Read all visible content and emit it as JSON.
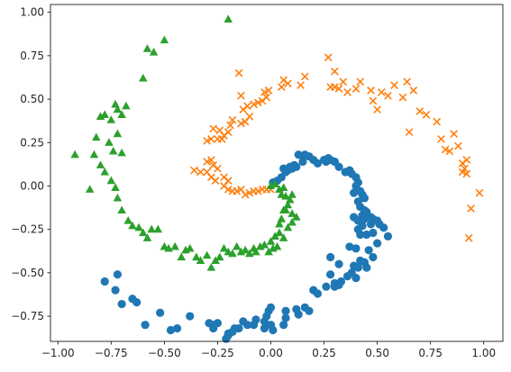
{
  "chart_data": {
    "type": "scatter",
    "title": "",
    "xlabel": "",
    "ylabel": "",
    "xlim": [
      -1.035,
      1.09
    ],
    "ylim": [
      -0.895,
      1.045
    ],
    "xticks": [
      {
        "value": -1.0,
        "label": "−1.00"
      },
      {
        "value": -0.75,
        "label": "−0.75"
      },
      {
        "value": -0.5,
        "label": "−0.50"
      },
      {
        "value": -0.25,
        "label": "−0.25"
      },
      {
        "value": 0.0,
        "label": "0.00"
      },
      {
        "value": 0.25,
        "label": "0.25"
      },
      {
        "value": 0.5,
        "label": "0.50"
      },
      {
        "value": 0.75,
        "label": "0.75"
      },
      {
        "value": 1.0,
        "label": "1.00"
      }
    ],
    "yticks": [
      {
        "value": -0.75,
        "label": "−0.75"
      },
      {
        "value": -0.5,
        "label": "−0.50"
      },
      {
        "value": -0.25,
        "label": "−0.25"
      },
      {
        "value": 0.0,
        "label": "0.00"
      },
      {
        "value": 0.25,
        "label": "0.25"
      },
      {
        "value": 0.5,
        "label": "0.50"
      },
      {
        "value": 0.75,
        "label": "0.75"
      },
      {
        "value": 1.0,
        "label": "1.00"
      }
    ],
    "grid": false,
    "legend": "none",
    "series": [
      {
        "marker": "circle",
        "color": "#1f77b4",
        "points": [
          [
            0.01,
            0.02
          ],
          [
            0.03,
            0.03
          ],
          [
            0.05,
            0.05
          ],
          [
            0.07,
            0.08
          ],
          [
            0.1,
            0.1
          ],
          [
            0.12,
            0.11
          ],
          [
            0.15,
            0.14
          ],
          [
            0.15,
            0.17
          ],
          [
            0.13,
            0.18
          ],
          [
            0.16,
            0.18
          ],
          [
            0.18,
            0.17
          ],
          [
            0.2,
            0.15
          ],
          [
            0.08,
            0.09
          ],
          [
            0.11,
            0.12
          ],
          [
            0.06,
            0.1
          ],
          [
            0.09,
            0.11
          ],
          [
            0.22,
            0.13
          ],
          [
            0.25,
            0.15
          ],
          [
            0.26,
            0.14
          ],
          [
            0.28,
            0.15
          ],
          [
            0.3,
            0.14
          ],
          [
            0.27,
            0.16
          ],
          [
            0.32,
            0.11
          ],
          [
            0.35,
            0.08
          ],
          [
            0.37,
            0.09
          ],
          [
            0.38,
            0.07
          ],
          [
            0.4,
            0.05
          ],
          [
            0.41,
            0.02
          ],
          [
            0.4,
            0.0
          ],
          [
            0.42,
            -0.03
          ],
          [
            0.43,
            -0.05
          ],
          [
            0.44,
            -0.07
          ],
          [
            0.39,
            -0.04
          ],
          [
            0.41,
            -0.09
          ],
          [
            0.42,
            -0.12
          ],
          [
            0.44,
            -0.14
          ],
          [
            0.45,
            -0.15
          ],
          [
            0.43,
            -0.17
          ],
          [
            0.39,
            -0.18
          ],
          [
            0.41,
            -0.2
          ],
          [
            0.44,
            -0.19
          ],
          [
            0.47,
            -0.18
          ],
          [
            0.48,
            -0.19
          ],
          [
            0.5,
            -0.2
          ],
          [
            0.43,
            -0.23
          ],
          [
            0.47,
            -0.22
          ],
          [
            0.51,
            -0.22
          ],
          [
            0.53,
            -0.24
          ],
          [
            0.41,
            -0.25
          ],
          [
            0.42,
            -0.28
          ],
          [
            0.45,
            -0.28
          ],
          [
            0.48,
            -0.27
          ],
          [
            0.55,
            -0.29
          ],
          [
            0.5,
            -0.33
          ],
          [
            0.4,
            -0.36
          ],
          [
            0.37,
            -0.35
          ],
          [
            0.46,
            -0.37
          ],
          [
            0.28,
            -0.41
          ],
          [
            0.48,
            -0.41
          ],
          [
            0.42,
            -0.43
          ],
          [
            0.44,
            -0.44
          ],
          [
            0.39,
            -0.46
          ],
          [
            0.32,
            -0.45
          ],
          [
            0.41,
            -0.47
          ],
          [
            0.45,
            -0.47
          ],
          [
            0.38,
            -0.5
          ],
          [
            0.28,
            -0.51
          ],
          [
            0.36,
            -0.52
          ],
          [
            0.4,
            -0.53
          ],
          [
            0.33,
            -0.55
          ],
          [
            0.3,
            -0.56
          ],
          [
            0.26,
            -0.58
          ],
          [
            0.3,
            -0.58
          ],
          [
            0.32,
            -0.57
          ],
          [
            0.2,
            -0.6
          ],
          [
            0.22,
            -0.62
          ],
          [
            0.16,
            -0.7
          ],
          [
            0.18,
            -0.72
          ],
          [
            0.12,
            -0.71
          ],
          [
            0.13,
            -0.74
          ],
          [
            0.07,
            -0.72
          ],
          [
            0.07,
            -0.76
          ],
          [
            0.06,
            -0.8
          ],
          [
            0.0,
            -0.7
          ],
          [
            -0.01,
            -0.72
          ],
          [
            -0.02,
            -0.75
          ],
          [
            -0.03,
            -0.78
          ],
          [
            0.0,
            -0.8
          ],
          [
            0.01,
            -0.83
          ],
          [
            -0.03,
            -0.82
          ],
          [
            -0.07,
            -0.77
          ],
          [
            -0.08,
            -0.8
          ],
          [
            -0.11,
            -0.8
          ],
          [
            -0.13,
            -0.78
          ],
          [
            -0.15,
            -0.82
          ],
          [
            -0.17,
            -0.82
          ],
          [
            -0.18,
            -0.84
          ],
          [
            -0.2,
            -0.85
          ],
          [
            -0.21,
            -0.88
          ],
          [
            -0.2,
            -0.86
          ],
          [
            -0.25,
            -0.79
          ],
          [
            -0.27,
            -0.8
          ],
          [
            -0.29,
            -0.79
          ],
          [
            -0.27,
            -0.82
          ],
          [
            -0.38,
            -0.75
          ],
          [
            -0.44,
            -0.82
          ],
          [
            -0.47,
            -0.83
          ],
          [
            -0.52,
            -0.73
          ],
          [
            -0.59,
            -0.8
          ],
          [
            -0.63,
            -0.67
          ],
          [
            -0.65,
            -0.65
          ],
          [
            -0.7,
            -0.68
          ],
          [
            -0.73,
            -0.6
          ],
          [
            -0.72,
            -0.51
          ],
          [
            -0.78,
            -0.55
          ]
        ]
      },
      {
        "marker": "x",
        "color": "#ff7f0e",
        "points": [
          [
            0.0,
            -0.02
          ],
          [
            -0.02,
            -0.02
          ],
          [
            -0.04,
            -0.02
          ],
          [
            -0.06,
            -0.03
          ],
          [
            -0.08,
            -0.03
          ],
          [
            -0.1,
            -0.04
          ],
          [
            -0.12,
            -0.05
          ],
          [
            -0.14,
            -0.02
          ],
          [
            -0.16,
            -0.03
          ],
          [
            -0.18,
            -0.03
          ],
          [
            -0.2,
            -0.02
          ],
          [
            -0.22,
            0.0
          ],
          [
            -0.2,
            0.03
          ],
          [
            -0.22,
            0.05
          ],
          [
            -0.26,
            0.03
          ],
          [
            -0.28,
            0.05
          ],
          [
            -0.3,
            0.08
          ],
          [
            -0.27,
            0.12
          ],
          [
            -0.3,
            0.14
          ],
          [
            -0.28,
            0.15
          ],
          [
            -0.25,
            0.1
          ],
          [
            -0.33,
            0.08
          ],
          [
            -0.36,
            0.09
          ],
          [
            -0.3,
            0.26
          ],
          [
            -0.28,
            0.27
          ],
          [
            -0.25,
            0.27
          ],
          [
            -0.23,
            0.27
          ],
          [
            -0.27,
            0.33
          ],
          [
            -0.24,
            0.32
          ],
          [
            -0.22,
            0.29
          ],
          [
            -0.2,
            0.31
          ],
          [
            -0.19,
            0.35
          ],
          [
            -0.18,
            0.38
          ],
          [
            -0.14,
            0.36
          ],
          [
            -0.12,
            0.37
          ],
          [
            -0.1,
            0.4
          ],
          [
            -0.13,
            0.44
          ],
          [
            -0.11,
            0.46
          ],
          [
            -0.08,
            0.47
          ],
          [
            -0.06,
            0.48
          ],
          [
            -0.04,
            0.49
          ],
          [
            -0.02,
            0.51
          ],
          [
            -0.01,
            0.55
          ],
          [
            -0.03,
            0.54
          ],
          [
            -0.14,
            0.52
          ],
          [
            -0.15,
            0.65
          ],
          [
            0.05,
            0.57
          ],
          [
            0.06,
            0.61
          ],
          [
            0.08,
            0.59
          ],
          [
            0.14,
            0.58
          ],
          [
            0.16,
            0.63
          ],
          [
            0.27,
            0.74
          ],
          [
            0.3,
            0.66
          ],
          [
            0.34,
            0.6
          ],
          [
            0.3,
            0.57
          ],
          [
            0.32,
            0.56
          ],
          [
            0.36,
            0.54
          ],
          [
            0.4,
            0.56
          ],
          [
            0.42,
            0.6
          ],
          [
            0.47,
            0.55
          ],
          [
            0.48,
            0.49
          ],
          [
            0.5,
            0.44
          ],
          [
            0.52,
            0.54
          ],
          [
            0.55,
            0.52
          ],
          [
            0.58,
            0.58
          ],
          [
            0.62,
            0.51
          ],
          [
            0.64,
            0.6
          ],
          [
            0.67,
            0.55
          ],
          [
            0.7,
            0.43
          ],
          [
            0.73,
            0.41
          ],
          [
            0.65,
            0.31
          ],
          [
            0.78,
            0.37
          ],
          [
            0.8,
            0.27
          ],
          [
            0.82,
            0.21
          ],
          [
            0.84,
            0.2
          ],
          [
            0.86,
            0.3
          ],
          [
            0.88,
            0.23
          ],
          [
            0.9,
            0.13
          ],
          [
            0.92,
            0.15
          ],
          [
            0.9,
            0.08
          ],
          [
            0.92,
            0.07
          ],
          [
            0.91,
            0.1
          ],
          [
            0.98,
            -0.04
          ],
          [
            0.94,
            -0.13
          ],
          [
            0.93,
            -0.3
          ],
          [
            0.28,
            0.57
          ]
        ]
      },
      {
        "marker": "triangle",
        "color": "#2ca02c",
        "points": [
          [
            0.0,
            0.0
          ],
          [
            0.02,
            0.01
          ],
          [
            0.04,
            -0.02
          ],
          [
            0.06,
            -0.01
          ],
          [
            0.05,
            -0.05
          ],
          [
            0.07,
            -0.06
          ],
          [
            0.09,
            -0.08
          ],
          [
            0.08,
            -0.11
          ],
          [
            0.06,
            -0.14
          ],
          [
            0.1,
            -0.16
          ],
          [
            0.05,
            -0.19
          ],
          [
            0.04,
            -0.22
          ],
          [
            0.1,
            -0.21
          ],
          [
            0.08,
            -0.24
          ],
          [
            0.04,
            -0.27
          ],
          [
            0.06,
            -0.3
          ],
          [
            0.02,
            -0.29
          ],
          [
            0.0,
            -0.32
          ],
          [
            0.03,
            -0.35
          ],
          [
            0.01,
            -0.36
          ],
          [
            -0.01,
            -0.38
          ],
          [
            -0.03,
            -0.34
          ],
          [
            -0.05,
            -0.35
          ],
          [
            -0.07,
            -0.38
          ],
          [
            -0.08,
            -0.36
          ],
          [
            -0.1,
            -0.39
          ],
          [
            -0.12,
            -0.37
          ],
          [
            -0.14,
            -0.38
          ],
          [
            -0.16,
            -0.35
          ],
          [
            -0.18,
            -0.39
          ],
          [
            -0.2,
            -0.38
          ],
          [
            -0.22,
            -0.36
          ],
          [
            -0.24,
            -0.41
          ],
          [
            -0.26,
            -0.43
          ],
          [
            -0.28,
            -0.47
          ],
          [
            -0.3,
            -0.4
          ],
          [
            -0.33,
            -0.43
          ],
          [
            -0.35,
            -0.41
          ],
          [
            -0.38,
            -0.36
          ],
          [
            -0.4,
            -0.37
          ],
          [
            -0.42,
            -0.41
          ],
          [
            -0.45,
            -0.35
          ],
          [
            -0.48,
            -0.36
          ],
          [
            -0.5,
            -0.35
          ],
          [
            -0.53,
            -0.25
          ],
          [
            -0.56,
            -0.25
          ],
          [
            -0.58,
            -0.3
          ],
          [
            -0.6,
            -0.27
          ],
          [
            -0.62,
            -0.24
          ],
          [
            -0.65,
            -0.23
          ],
          [
            -0.67,
            -0.2
          ],
          [
            -0.7,
            -0.14
          ],
          [
            -0.72,
            -0.07
          ],
          [
            -0.73,
            -0.01
          ],
          [
            -0.75,
            0.03
          ],
          [
            -0.78,
            0.08
          ],
          [
            -0.8,
            0.12
          ],
          [
            -0.83,
            0.18
          ],
          [
            -0.85,
            -0.02
          ],
          [
            -0.82,
            0.28
          ],
          [
            -0.8,
            0.4
          ],
          [
            -0.78,
            0.41
          ],
          [
            -0.75,
            0.38
          ],
          [
            -0.72,
            0.44
          ],
          [
            -0.7,
            0.41
          ],
          [
            -0.68,
            0.46
          ],
          [
            -0.73,
            0.47
          ],
          [
            -0.72,
            0.3
          ],
          [
            -0.76,
            0.25
          ],
          [
            -0.74,
            0.2
          ],
          [
            -0.7,
            0.19
          ],
          [
            -0.6,
            0.62
          ],
          [
            -0.58,
            0.79
          ],
          [
            -0.55,
            0.77
          ],
          [
            -0.5,
            0.84
          ],
          [
            -0.92,
            0.18
          ],
          [
            -0.2,
            0.96
          ],
          [
            0.1,
            -0.05
          ],
          [
            0.12,
            -0.18
          ],
          [
            0.07,
            -0.14
          ]
        ]
      }
    ]
  }
}
